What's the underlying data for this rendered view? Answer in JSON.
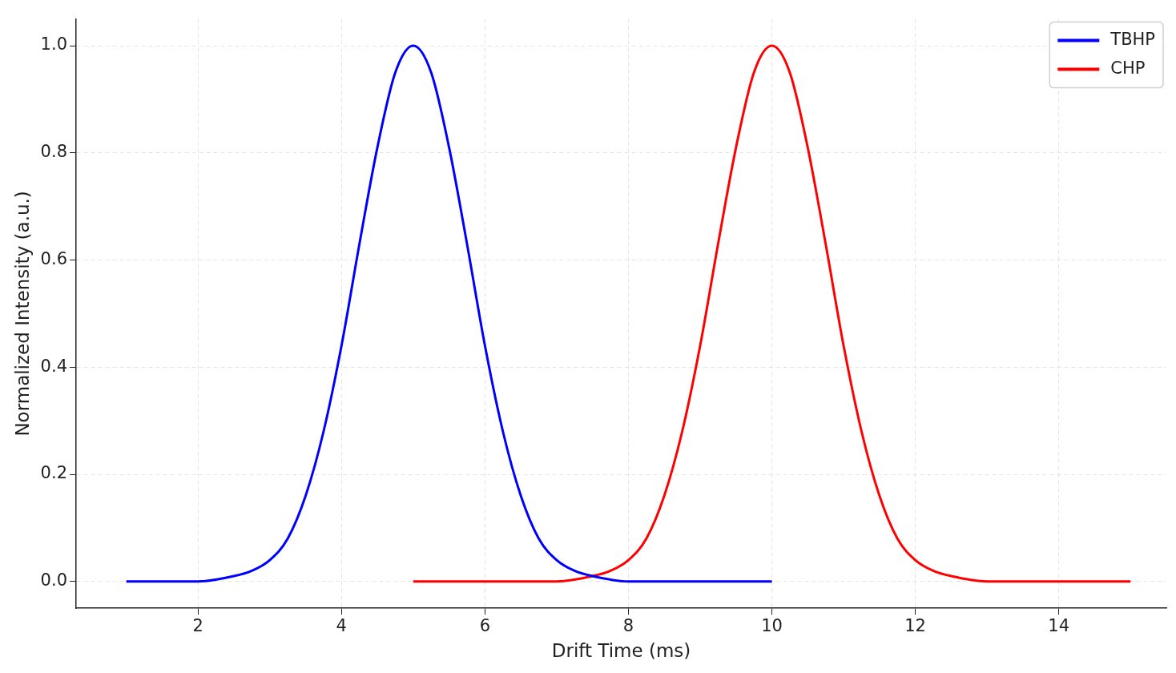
{
  "chart_data": {
    "type": "line",
    "xlabel": "Drift Time (ms)",
    "ylabel": "Normalized Intensity (a.u.)",
    "xlim": [
      0.3,
      15.5
    ],
    "xticks": [
      2,
      4,
      6,
      8,
      10,
      12,
      14
    ],
    "ylim": [
      -0.05,
      1.05
    ],
    "yticks": [
      {
        "value": 0,
        "label": "0.0"
      },
      {
        "value": 0.2,
        "label": "0.2"
      },
      {
        "value": 0.4,
        "label": "0.4"
      },
      {
        "value": 0.6,
        "label": "0.6"
      },
      {
        "value": 0.8,
        "label": "0.8"
      },
      {
        "value": 1,
        "label": "1.0"
      }
    ],
    "grid": true,
    "legend": "top right",
    "marker": "none",
    "line_style": "solid",
    "series": [
      {
        "name": "TBHP",
        "color": "#0000ff",
        "x": [
          1,
          2,
          2.5,
          2.75,
          3,
          3.25,
          3.5,
          3.75,
          4,
          4.25,
          4.5,
          4.75,
          5,
          5.25,
          5.5,
          5.75,
          6,
          6.25,
          6.5,
          6.75,
          7,
          7.25,
          7.5,
          8,
          10
        ],
        "values": [
          0,
          0,
          0.01,
          0.02,
          0.04,
          0.08,
          0.16,
          0.28,
          0.44,
          0.63,
          0.81,
          0.95,
          1,
          0.95,
          0.81,
          0.63,
          0.44,
          0.28,
          0.16,
          0.08,
          0.04,
          0.02,
          0.01,
          0,
          0
        ]
      },
      {
        "name": "CHP",
        "color": "#ff0000",
        "x": [
          5,
          7,
          7.5,
          7.75,
          8,
          8.25,
          8.5,
          8.75,
          9,
          9.25,
          9.5,
          9.75,
          10,
          10.25,
          10.5,
          10.75,
          11,
          11.25,
          11.5,
          11.75,
          12,
          12.25,
          12.5,
          13,
          15
        ],
        "values": [
          0,
          0,
          0.01,
          0.02,
          0.04,
          0.08,
          0.16,
          0.28,
          0.44,
          0.63,
          0.81,
          0.95,
          1,
          0.95,
          0.81,
          0.63,
          0.44,
          0.28,
          0.16,
          0.08,
          0.04,
          0.02,
          0.01,
          0,
          0
        ]
      }
    ]
  }
}
